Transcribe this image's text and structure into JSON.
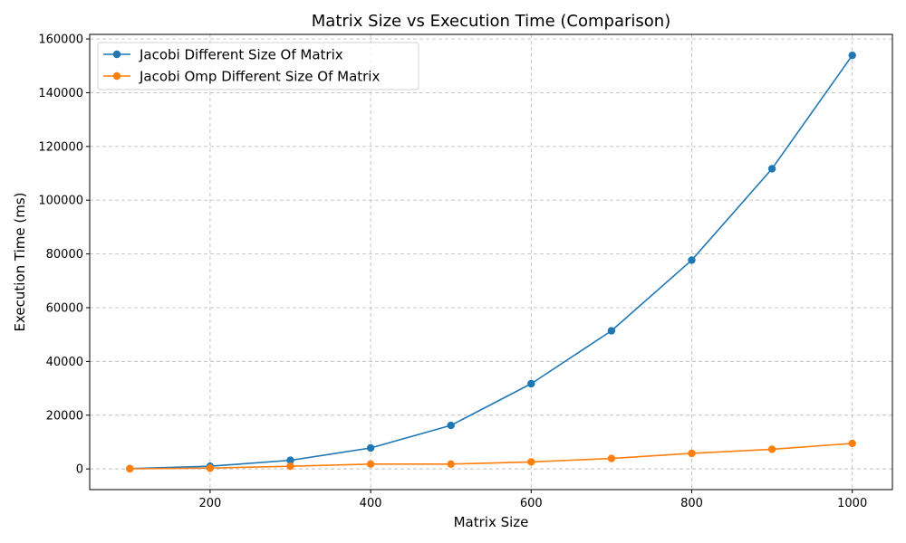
{
  "chart_data": {
    "type": "line",
    "title": "Matrix Size vs Execution Time (Comparison)",
    "xlabel": "Matrix Size",
    "ylabel": "Execution Time (ms)",
    "x": [
      100,
      200,
      300,
      400,
      500,
      600,
      700,
      800,
      900,
      1000
    ],
    "xlim": [
      50,
      1050
    ],
    "ylim": [
      -7700,
      161700
    ],
    "xticks": [
      200,
      400,
      600,
      800,
      1000
    ],
    "yticks": [
      0,
      20000,
      40000,
      60000,
      80000,
      100000,
      120000,
      140000,
      160000
    ],
    "grid": true,
    "legend_position": "top-left",
    "series": [
      {
        "name": "Jacobi Different Size Of Matrix",
        "color": "#1f77b4",
        "marker": "circle",
        "values": [
          100,
          1000,
          3200,
          7800,
          16200,
          31700,
          51400,
          77700,
          111700,
          153900
        ]
      },
      {
        "name": "Jacobi Omp Different Size Of Matrix",
        "color": "#ff7f0e",
        "marker": "circle",
        "values": [
          50,
          300,
          1000,
          1800,
          1800,
          2600,
          3900,
          5800,
          7300,
          9500
        ]
      }
    ]
  }
}
